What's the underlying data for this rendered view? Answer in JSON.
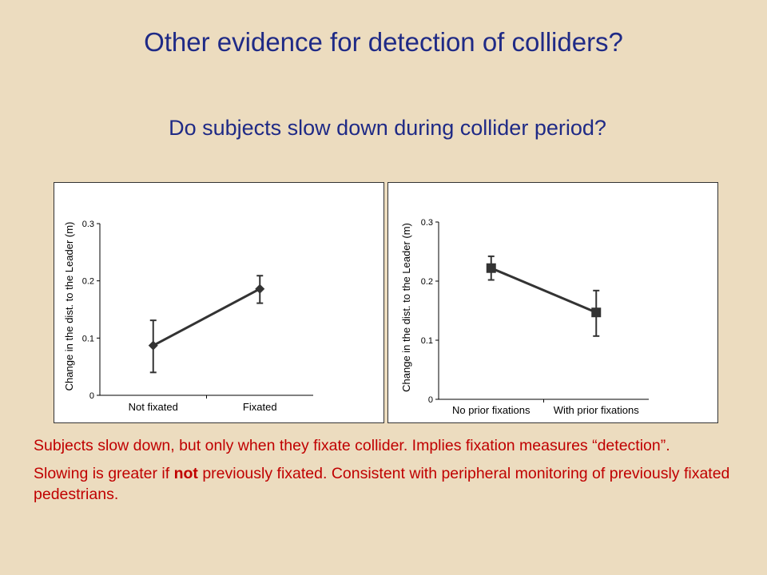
{
  "slide": {
    "title": "Other evidence for detection of colliders?",
    "subtitle": "Do subjects slow down during collider period?",
    "note1": "Subjects slow down, but only when they fixate collider. Implies fixation measures “detection”.",
    "note2_before": "Slowing is greater if ",
    "note2_bold": "not",
    "note2_after": " previously fixated. Consistent with peripheral monitoring of previously fixated pedestrians."
  },
  "colors": {
    "title": "#1f2a86",
    "notes": "#c00000",
    "background": "#ecdcbf",
    "series": "#333333"
  },
  "chart_data": [
    {
      "type": "line",
      "categories": [
        "Not fixated",
        "Fixated"
      ],
      "values": [
        0.087,
        0.186
      ],
      "error_upper": [
        0.131,
        0.209
      ],
      "error_lower": [
        0.04,
        0.161
      ],
      "marker": "diamond",
      "ylabel": "Change in the dist. to the Leader (m)",
      "xlabel": "",
      "ylim": [
        0,
        0.3
      ],
      "yticks": [
        "0",
        "0.1",
        "0.2",
        "0.3"
      ],
      "grid": false
    },
    {
      "type": "line",
      "categories": [
        "No prior fixations",
        "With prior fixations"
      ],
      "values": [
        0.222,
        0.147
      ],
      "error_upper": [
        0.242,
        0.184
      ],
      "error_lower": [
        0.202,
        0.107
      ],
      "marker": "square",
      "ylabel": "Change in the dist. to the Leader (m)",
      "xlabel": "",
      "ylim": [
        0,
        0.3
      ],
      "yticks": [
        "0",
        "0.1",
        "0.2",
        "0.3"
      ],
      "grid": false
    }
  ]
}
